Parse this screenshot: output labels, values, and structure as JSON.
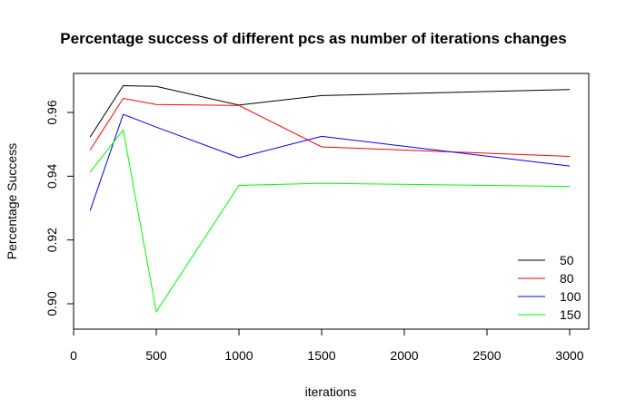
{
  "chart_data": {
    "type": "line",
    "title": "Percentage success of different pcs as number of iterations changes",
    "xlabel": "iterations",
    "ylabel": "Percentage Success",
    "xlim": [
      0,
      3100
    ],
    "ylim": [
      0.894,
      0.971
    ],
    "x_ticks": [
      0,
      500,
      1000,
      1500,
      2000,
      2500,
      3000
    ],
    "y_ticks": [
      0.9,
      0.92,
      0.94,
      0.96
    ],
    "x_tick_labels": [
      "0",
      "500",
      "1000",
      "1500",
      "2000",
      "2500",
      "3000"
    ],
    "y_tick_labels": [
      "0.90",
      "0.92",
      "0.94",
      "0.96"
    ],
    "x": [
      100,
      300,
      500,
      1000,
      1500,
      3000
    ],
    "legend_position": "bottom-right",
    "grid": false,
    "series": [
      {
        "name": "50",
        "color": "#000000",
        "values": [
          0.9523,
          0.9684,
          0.9682,
          0.9623,
          0.9653,
          0.9672
        ]
      },
      {
        "name": "80",
        "color": "#ff0000",
        "values": [
          0.9482,
          0.9644,
          0.9625,
          0.9622,
          0.9492,
          0.9462
        ]
      },
      {
        "name": "100",
        "color": "#0000ff",
        "values": [
          0.9292,
          0.9594,
          0.9554,
          0.9458,
          0.9525,
          0.9432
        ]
      },
      {
        "name": "150",
        "color": "#00ff00",
        "values": [
          0.9413,
          0.9545,
          0.8975,
          0.9371,
          0.9378,
          0.9368
        ]
      }
    ]
  }
}
